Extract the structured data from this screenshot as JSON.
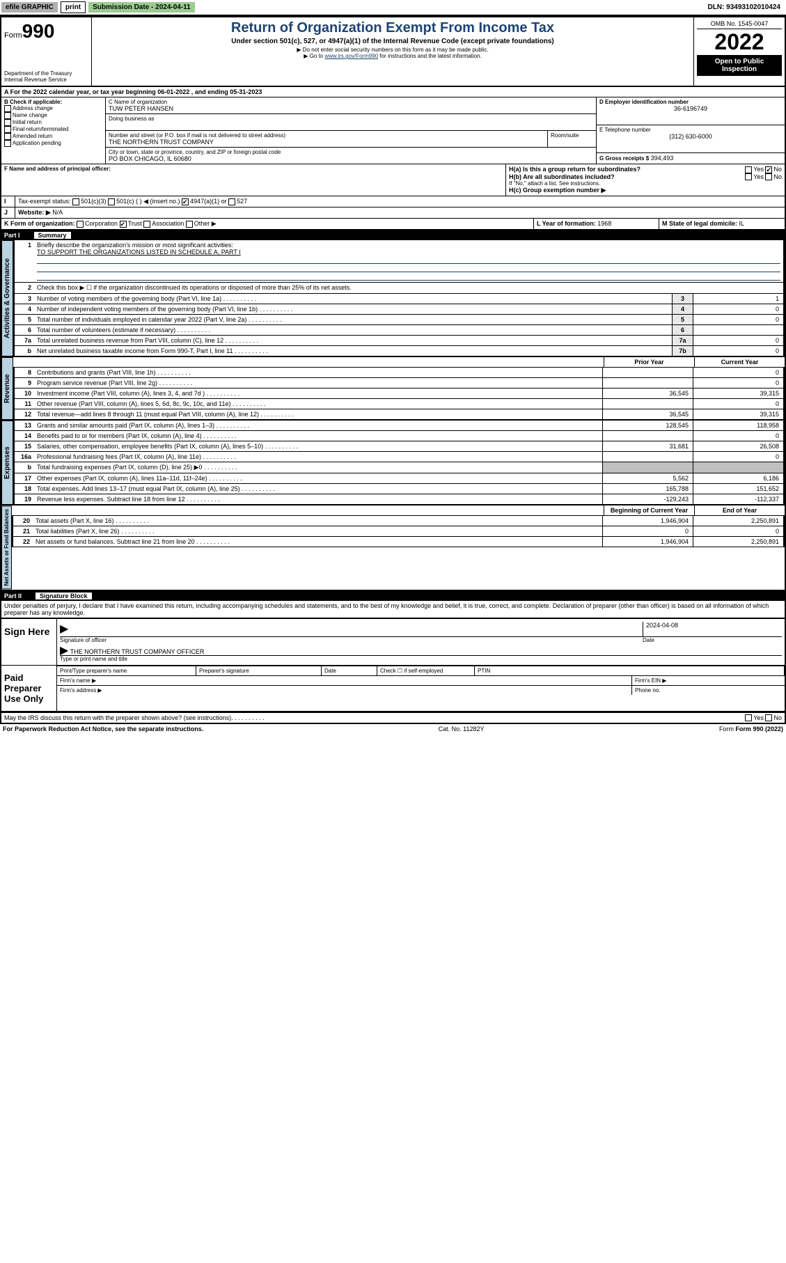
{
  "topbar": {
    "efile": "efile GRAPHIC",
    "print": "print",
    "submission": "Submission Date - 2024-04-11",
    "dln": "DLN: 93493102010424"
  },
  "header": {
    "form_label": "Form",
    "form_num": "990",
    "dept": "Department of the Treasury",
    "irs": "Internal Revenue Service",
    "title": "Return of Organization Exempt From Income Tax",
    "sub1": "Under section 501(c), 527, or 4947(a)(1) of the Internal Revenue Code (except private foundations)",
    "sub2": "▶ Do not enter social security numbers on this form as it may be made public.",
    "sub3_pre": "▶ Go to ",
    "sub3_link": "www.irs.gov/Form990",
    "sub3_post": " for instructions and the latest information.",
    "omb": "OMB No. 1545-0047",
    "year": "2022",
    "open": "Open to Public Inspection"
  },
  "section_a": {
    "period": "For the 2022 calendar year, or tax year beginning 06-01-2022    , and ending 05-31-2023",
    "b_label": "B Check if applicable:",
    "b_opts": [
      "Address change",
      "Name change",
      "Initial return",
      "Final return/terminated",
      "Amended return",
      "Application pending"
    ],
    "c_label": "C Name of organization",
    "c_name": "TUW PETER HANSEN",
    "dba_label": "Doing business as",
    "addr_label": "Number and street (or P.O. box if mail is not delivered to street address)",
    "room_label": "Room/suite",
    "addr": "THE NORTHERN TRUST COMPANY",
    "city_label": "City or town, state or province, country, and ZIP or foreign postal code",
    "city": "PO BOX CHICAGO, IL  60680",
    "d_label": "D Employer identification number",
    "d_val": "36-6196749",
    "e_label": "E Telephone number",
    "e_val": "(312) 630-6000",
    "g_label": "G Gross receipts $",
    "g_val": "394,493",
    "f_label": "F Name and address of principal officer:",
    "ha_label": "H(a)  Is this a group return for subordinates?",
    "hb_label": "H(b)  Are all subordinates included?",
    "hb_note": "If \"No,\" attach a list. See instructions.",
    "hc_label": "H(c)  Group exemption number ▶",
    "i_label": "Tax-exempt status:",
    "i_501c3": "501(c)(3)",
    "i_501c": "501(c) (   ) ◀ (insert no.)",
    "i_4947": "4947(a)(1) or",
    "i_527": "527",
    "j_label": "Website: ▶",
    "j_val": "N/A",
    "k_label": "K Form of organization:",
    "k_corp": "Corporation",
    "k_trust": "Trust",
    "k_assoc": "Association",
    "k_other": "Other ▶",
    "l_label": "L Year of formation:",
    "l_val": "1968",
    "m_label": "M State of legal domicile:",
    "m_val": "IL",
    "yes": "Yes",
    "no": "No"
  },
  "part1": {
    "label": "Part I",
    "title": "Summary",
    "line1": "Briefly describe the organization's mission or most significant activities:",
    "mission": "TO SUPPORT THE ORGANIZATIONS LISTED IN SCHEDULE A, PART I",
    "line2": "Check this box ▶ ☐  if the organization discontinued its operations or disposed of more than 25% of its net assets.",
    "lines": [
      {
        "n": "3",
        "d": "Number of voting members of the governing body (Part VI, line 1a)",
        "box": "3",
        "v": "1"
      },
      {
        "n": "4",
        "d": "Number of independent voting members of the governing body (Part VI, line 1b)",
        "box": "4",
        "v": "0"
      },
      {
        "n": "5",
        "d": "Total number of individuals employed in calendar year 2022 (Part V, line 2a)",
        "box": "5",
        "v": "0"
      },
      {
        "n": "6",
        "d": "Total number of volunteers (estimate if necessary)",
        "box": "6",
        "v": ""
      },
      {
        "n": "7a",
        "d": "Total unrelated business revenue from Part VIII, column (C), line 12",
        "box": "7a",
        "v": "0"
      },
      {
        "n": "b",
        "d": "Net unrelated business taxable income from Form 990-T, Part I, line 11",
        "box": "7b",
        "v": "0"
      }
    ],
    "col_prior": "Prior Year",
    "col_current": "Current Year",
    "revenue": [
      {
        "n": "8",
        "d": "Contributions and grants (Part VIII, line 1h)",
        "p": "",
        "c": "0"
      },
      {
        "n": "9",
        "d": "Program service revenue (Part VIII, line 2g)",
        "p": "",
        "c": "0"
      },
      {
        "n": "10",
        "d": "Investment income (Part VIII, column (A), lines 3, 4, and 7d )",
        "p": "36,545",
        "c": "39,315"
      },
      {
        "n": "11",
        "d": "Other revenue (Part VIII, column (A), lines 5, 6d, 8c, 9c, 10c, and 11e)",
        "p": "",
        "c": "0"
      },
      {
        "n": "12",
        "d": "Total revenue—add lines 8 through 11 (must equal Part VIII, column (A), line 12)",
        "p": "36,545",
        "c": "39,315"
      }
    ],
    "expenses": [
      {
        "n": "13",
        "d": "Grants and similar amounts paid (Part IX, column (A), lines 1–3)",
        "p": "128,545",
        "c": "118,958"
      },
      {
        "n": "14",
        "d": "Benefits paid to or for members (Part IX, column (A), line 4)",
        "p": "",
        "c": "0"
      },
      {
        "n": "15",
        "d": "Salaries, other compensation, employee benefits (Part IX, column (A), lines 5–10)",
        "p": "31,681",
        "c": "26,508"
      },
      {
        "n": "16a",
        "d": "Professional fundraising fees (Part IX, column (A), line 11e)",
        "p": "",
        "c": "0"
      },
      {
        "n": "b",
        "d": "Total fundraising expenses (Part IX, column (D), line 25) ▶0",
        "p": "blank",
        "c": "blank"
      },
      {
        "n": "17",
        "d": "Other expenses (Part IX, column (A), lines 11a–11d, 11f–24e)",
        "p": "5,562",
        "c": "6,186"
      },
      {
        "n": "18",
        "d": "Total expenses. Add lines 13–17 (must equal Part IX, column (A), line 25)",
        "p": "165,788",
        "c": "151,652"
      },
      {
        "n": "19",
        "d": "Revenue less expenses. Subtract line 18 from line 12",
        "p": "-129,243",
        "c": "-112,337"
      }
    ],
    "col_begin": "Beginning of Current Year",
    "col_end": "End of Year",
    "netassets": [
      {
        "n": "20",
        "d": "Total assets (Part X, line 16)",
        "p": "1,946,904",
        "c": "2,250,891"
      },
      {
        "n": "21",
        "d": "Total liabilities (Part X, line 26)",
        "p": "0",
        "c": "0"
      },
      {
        "n": "22",
        "d": "Net assets or fund balances. Subtract line 21 from line 20",
        "p": "1,946,904",
        "c": "2,250,891"
      }
    ],
    "vert_gov": "Activities & Governance",
    "vert_rev": "Revenue",
    "vert_exp": "Expenses",
    "vert_net": "Net Assets or Fund Balances"
  },
  "part2": {
    "label": "Part II",
    "title": "Signature Block",
    "penalty": "Under penalties of perjury, I declare that I have examined this return, including accompanying schedules and statements, and to the best of my knowledge and belief, it is true, correct, and complete. Declaration of preparer (other than officer) is based on all information of which preparer has any knowledge.",
    "sign_here": "Sign Here",
    "sig_officer": "Signature of officer",
    "date_label": "Date",
    "date_val": "2024-04-08",
    "officer_name": "THE NORTHERN TRUST COMPANY OFFICER",
    "type_name": "Type or print name and title",
    "paid": "Paid Preparer Use Only",
    "prep_name": "Print/Type preparer's name",
    "prep_sig": "Preparer's signature",
    "prep_date": "Date",
    "prep_check": "Check ☐ if self-employed",
    "ptin": "PTIN",
    "firm_name": "Firm's name    ▶",
    "firm_ein": "Firm's EIN ▶",
    "firm_addr": "Firm's address ▶",
    "phone": "Phone no.",
    "may_irs": "May the IRS discuss this return with the preparer shown above? (see instructions)"
  },
  "footer": {
    "paperwork": "For Paperwork Reduction Act Notice, see the separate instructions.",
    "cat": "Cat. No. 11282Y",
    "form": "Form 990 (2022)"
  }
}
